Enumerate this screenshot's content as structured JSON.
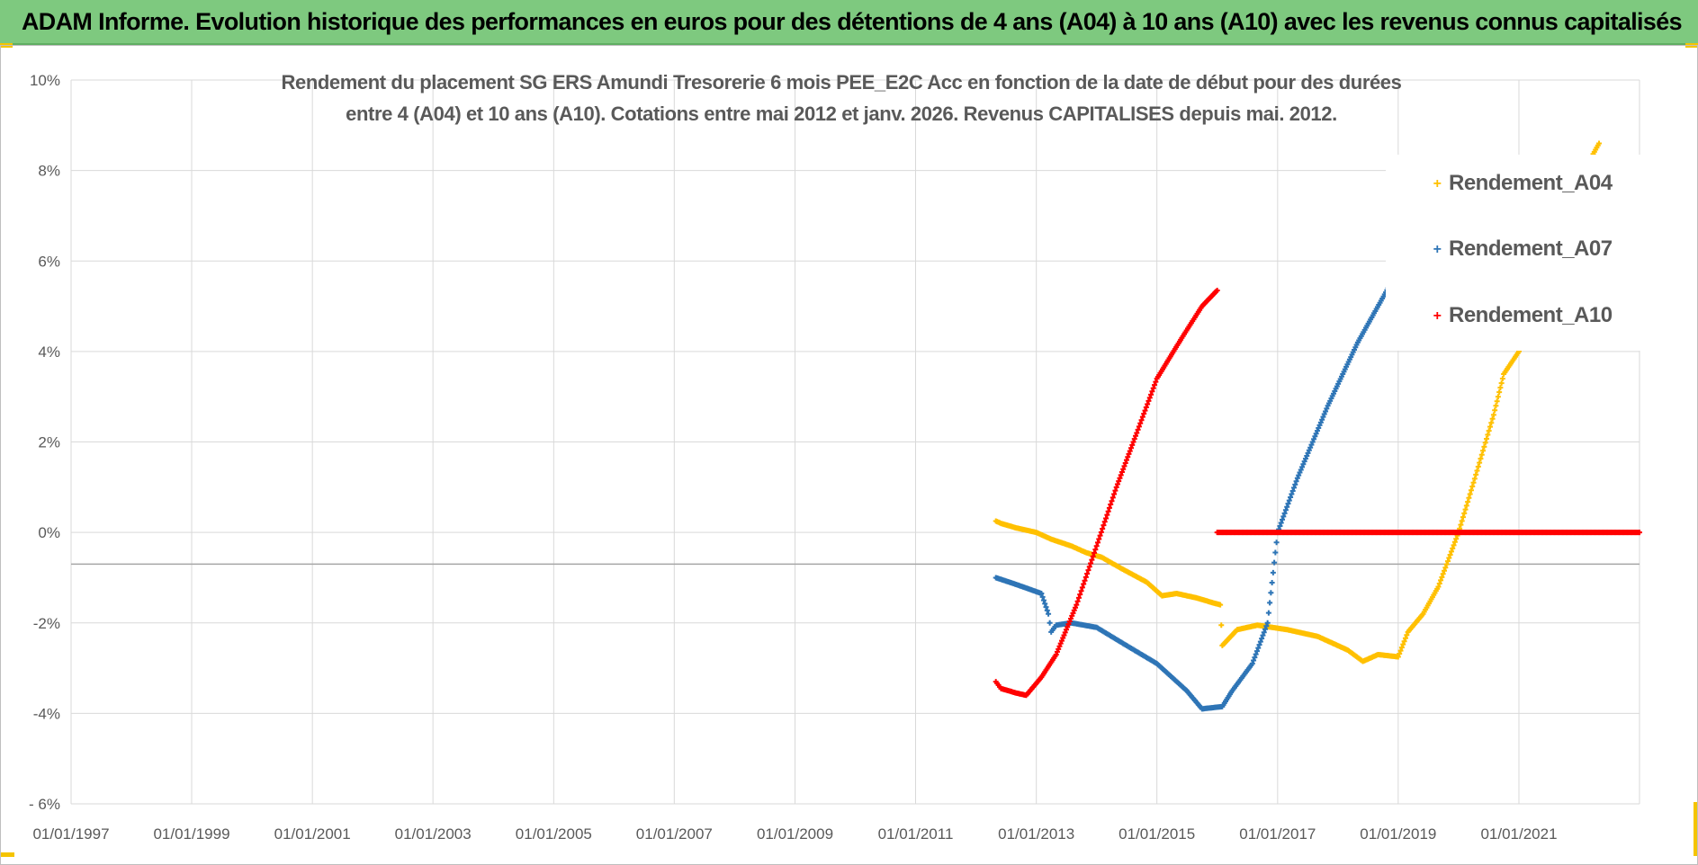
{
  "header": {
    "title": "ADAM Informe. Evolution historique des performances en euros pour des détentions de 4 ans (A04) à 10 ans (A10) avec les revenus connus capitalisés"
  },
  "colors": {
    "banner": "#7ec97f",
    "corner_accent": "#f5c400",
    "gridline": "#d9d9d9",
    "axis_text": "#595959",
    "series_A04": "#ffc000",
    "series_A07": "#2e75b6",
    "series_A10": "#ff0000"
  },
  "chart_data": {
    "type": "scatter",
    "title_line1": "Rendement du placement SG ERS Amundi Tresorerie 6 mois PEE_E2C Acc en fonction de la date de début pour des durées",
    "title_line2": "entre 4 (A04) et 10 ans (A10). Cotations entre mai 2012 et janv. 2026. Revenus CAPITALISES depuis mai. 2012.",
    "xlabel": "",
    "ylabel": "",
    "x_type": "date",
    "xlim": [
      "1997-01-01",
      "2023-01-01"
    ],
    "ylim": [
      -6,
      10
    ],
    "ytick_labels": [
      "10%",
      "8%",
      "6%",
      "4%",
      "2%",
      "0%",
      "-2%",
      "-4%",
      "- 6%"
    ],
    "ytick_values": [
      10,
      8,
      6,
      4,
      2,
      0,
      -2,
      -4,
      -6
    ],
    "xtick_labels": [
      "01/01/1997",
      "01/01/1999",
      "01/01/2001",
      "01/01/2003",
      "01/01/2005",
      "01/01/2007",
      "01/01/2009",
      "01/01/2011",
      "01/01/2013",
      "01/01/2015",
      "01/01/2017",
      "01/01/2019",
      "01/01/2021"
    ],
    "xtick_values": [
      "1997-01-01",
      "1999-01-01",
      "2001-01-01",
      "2003-01-01",
      "2005-01-01",
      "2007-01-01",
      "2009-01-01",
      "2011-01-01",
      "2013-01-01",
      "2015-01-01",
      "2017-01-01",
      "2019-01-01",
      "2021-01-01"
    ],
    "reference_line_y": -0.7,
    "grid": true,
    "legend_position": "top-right",
    "series": [
      {
        "name": "Rendement_A04",
        "color": "#ffc000",
        "marker": "+",
        "points": [
          [
            "2012-05-01",
            0.25
          ],
          [
            "2012-06-01",
            0.2
          ],
          [
            "2012-09-01",
            0.1
          ],
          [
            "2013-01-01",
            0.0
          ],
          [
            "2013-04-01",
            -0.15
          ],
          [
            "2013-08-01",
            -0.3
          ],
          [
            "2013-11-01",
            -0.45
          ],
          [
            "2014-02-01",
            -0.55
          ],
          [
            "2014-06-01",
            -0.8
          ],
          [
            "2014-11-01",
            -1.1
          ],
          [
            "2015-02-01",
            -1.4
          ],
          [
            "2015-05-01",
            -1.35
          ],
          [
            "2015-09-01",
            -1.45
          ],
          [
            "2015-12-01",
            -1.55
          ],
          [
            "2016-01-20",
            -1.6
          ],
          [
            "2016-02-01",
            -2.5
          ],
          [
            "2016-05-01",
            -2.15
          ],
          [
            "2016-09-01",
            -2.05
          ],
          [
            "2017-03-01",
            -2.15
          ],
          [
            "2017-09-01",
            -2.3
          ],
          [
            "2018-03-01",
            -2.6
          ],
          [
            "2018-06-01",
            -2.85
          ],
          [
            "2018-09-01",
            -2.7
          ],
          [
            "2019-01-01",
            -2.75
          ],
          [
            "2019-03-01",
            -2.2
          ],
          [
            "2019-06-01",
            -1.8
          ],
          [
            "2019-09-01",
            -1.2
          ],
          [
            "2020-01-01",
            0.0
          ],
          [
            "2020-04-01",
            1.1
          ],
          [
            "2020-08-01",
            2.6
          ],
          [
            "2020-10-01",
            3.5
          ],
          [
            "2021-01-01",
            4.0
          ],
          [
            "2021-04-01",
            5.3
          ],
          [
            "2021-08-01",
            6.6
          ],
          [
            "2022-01-01",
            7.8
          ],
          [
            "2022-05-01",
            8.6
          ]
        ]
      },
      {
        "name": "Rendement_A07",
        "color": "#2e75b6",
        "marker": "+",
        "points": [
          [
            "2012-05-01",
            -1.0
          ],
          [
            "2012-09-01",
            -1.15
          ],
          [
            "2013-02-01",
            -1.35
          ],
          [
            "2013-03-15",
            -1.8
          ],
          [
            "2013-04-01",
            -2.2
          ],
          [
            "2013-05-01",
            -2.05
          ],
          [
            "2013-08-01",
            -2.0
          ],
          [
            "2014-01-01",
            -2.1
          ],
          [
            "2014-07-01",
            -2.5
          ],
          [
            "2015-01-01",
            -2.9
          ],
          [
            "2015-07-01",
            -3.5
          ],
          [
            "2015-10-01",
            -3.9
          ],
          [
            "2016-02-01",
            -3.85
          ],
          [
            "2016-04-01",
            -3.5
          ],
          [
            "2016-08-01",
            -2.9
          ],
          [
            "2016-11-01",
            -2.0
          ],
          [
            "2017-01-01",
            0.0
          ],
          [
            "2017-05-01",
            1.2
          ],
          [
            "2017-11-01",
            2.8
          ],
          [
            "2018-05-01",
            4.2
          ],
          [
            "2018-11-01",
            5.4
          ],
          [
            "2019-03-01",
            6.2
          ],
          [
            "2019-07-01",
            7.0
          ],
          [
            "2019-12-01",
            8.0
          ]
        ]
      },
      {
        "name": "Rendement_A10",
        "color": "#ff0000",
        "marker": "+",
        "points": [
          [
            "2012-05-01",
            -3.3
          ],
          [
            "2012-06-01",
            -3.45
          ],
          [
            "2012-09-01",
            -3.55
          ],
          [
            "2012-11-01",
            -3.6
          ],
          [
            "2013-02-01",
            -3.2
          ],
          [
            "2013-05-01",
            -2.7
          ],
          [
            "2013-09-01",
            -1.6
          ],
          [
            "2014-01-01",
            -0.3
          ],
          [
            "2014-05-01",
            1.0
          ],
          [
            "2014-09-01",
            2.2
          ],
          [
            "2015-01-01",
            3.4
          ],
          [
            "2015-06-01",
            4.3
          ],
          [
            "2015-10-01",
            5.0
          ],
          [
            "2016-01-01",
            5.35
          ],
          [
            "2016-01-01",
            0.0
          ],
          [
            "2023-01-01",
            0.0
          ]
        ]
      }
    ]
  }
}
